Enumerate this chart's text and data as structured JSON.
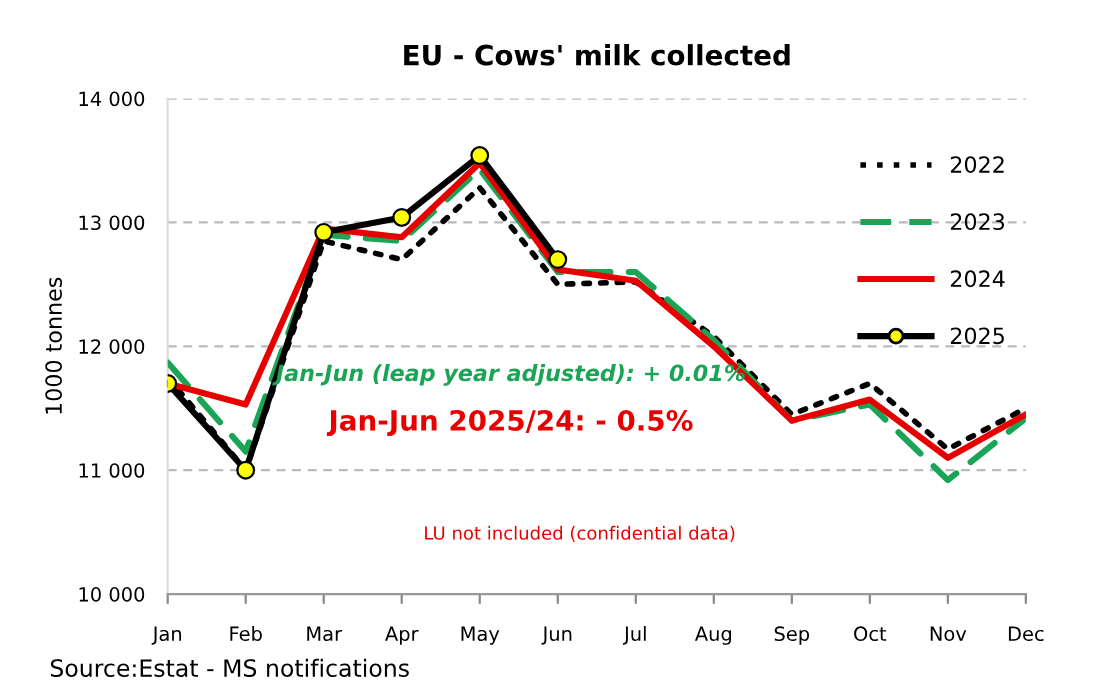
{
  "chart_data": {
    "type": "line",
    "title": "EU - Cows' milk collected",
    "ylabel": "1000 tonnes",
    "categories": [
      "Jan",
      "Feb",
      "Mar",
      "Apr",
      "May",
      "Jun",
      "Jul",
      "Aug",
      "Sep",
      "Oct",
      "Nov",
      "Dec"
    ],
    "series": [
      {
        "name": "2022",
        "color": "#000000",
        "line_style": "dotted",
        "marker": "none",
        "values": [
          11750,
          11000,
          12850,
          12700,
          13280,
          12500,
          12520,
          12080,
          11450,
          11700,
          11170,
          11500
        ]
      },
      {
        "name": "2023",
        "color": "#1aa456",
        "line_style": "dashed",
        "marker": "none",
        "values": [
          11870,
          11150,
          12900,
          12850,
          13430,
          12600,
          12600,
          12050,
          11400,
          11530,
          10920,
          11420
        ]
      },
      {
        "name": "2024",
        "color": "#e80000",
        "line_style": "solid",
        "marker": "none",
        "values": [
          11700,
          11530,
          12950,
          12880,
          13480,
          12620,
          12530,
          12000,
          11400,
          11570,
          11100,
          11450
        ]
      },
      {
        "name": "2025",
        "color": "#000000",
        "line_style": "solid",
        "marker": "circle",
        "values": [
          11700,
          11000,
          12920,
          13040,
          13540,
          12700,
          null,
          null,
          null,
          null,
          null,
          null
        ]
      }
    ],
    "ylim": [
      10000,
      14000
    ],
    "yticks": [
      {
        "value": 10000,
        "label": "10 000"
      },
      {
        "value": 11000,
        "label": "11 000"
      },
      {
        "value": 12000,
        "label": "12 000"
      },
      {
        "value": 13000,
        "label": "13 000"
      },
      {
        "value": 14000,
        "label": "14 000"
      }
    ],
    "grid": "y",
    "legend": "right",
    "annotations": [
      "Jan-Jun (leap year adjusted): + 0.01%",
      "Jan-Jun 2025/24: - 0.5%",
      "LU not included (confidential data)",
      "Source:Estat - MS notifications"
    ]
  }
}
